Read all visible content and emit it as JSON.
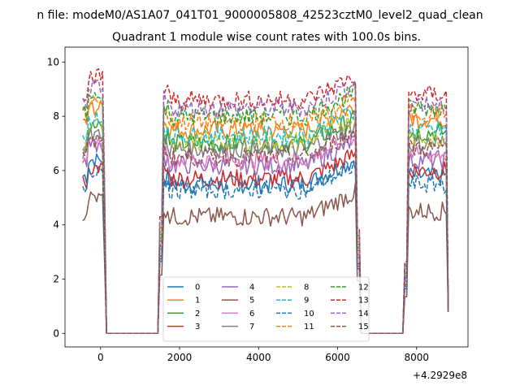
{
  "figure": {
    "suptitle": "n file: modeM0/AS1A07_041T01_9000005808_42523cztM0_level2_quad_clean",
    "title": "Quadrant 1 module wise count rates with 100.0s bins.",
    "offset_label": "+4.2929e8"
  },
  "chart_data": {
    "type": "line",
    "title": "Quadrant 1 module wise count rates with 100.0s bins.",
    "xlabel": "",
    "ylabel": "",
    "x_offset": 429290000,
    "xlim": [
      -900,
      9300
    ],
    "ylim": [
      -0.5,
      10.55
    ],
    "x_ticks": [
      0,
      2000,
      4000,
      6000,
      8000
    ],
    "y_ticks": [
      0,
      2,
      4,
      6,
      8,
      10
    ],
    "x_tick_labels": [
      "0",
      "2000",
      "4000",
      "6000",
      "8000"
    ],
    "y_tick_labels": [
      "0",
      "2",
      "4",
      "6",
      "8",
      "10"
    ],
    "grid": false,
    "legend": {
      "placement": "lower-center",
      "columns": 4
    },
    "segments": [
      [
        -450,
        150
      ],
      [
        150,
        1450
      ],
      [
        1450,
        6600
      ],
      [
        6600,
        7650
      ],
      [
        7650,
        8800
      ]
    ],
    "series": [
      {
        "name": "0",
        "color": "#1f77b4",
        "dash": "solid",
        "level": 5.5,
        "early": 6.4,
        "late": 5.8
      },
      {
        "name": "1",
        "color": "#ff7f0e",
        "dash": "solid",
        "level": 7.5,
        "early": 8.3,
        "late": 7.9
      },
      {
        "name": "2",
        "color": "#2ca02c",
        "dash": "solid",
        "level": 7.0,
        "early": 7.6,
        "late": 7.4
      },
      {
        "name": "3",
        "color": "#d62728",
        "dash": "solid",
        "level": 5.7,
        "early": 6.1,
        "late": 6.0
      },
      {
        "name": "4",
        "color": "#9467bd",
        "dash": "solid",
        "level": 6.2,
        "early": 6.9,
        "late": 6.4
      },
      {
        "name": "5",
        "color": "#8c564b",
        "dash": "solid",
        "level": 4.3,
        "early": 5.0,
        "late": 4.5
      },
      {
        "name": "6",
        "color": "#e377c2",
        "dash": "solid",
        "level": 6.4,
        "early": 7.1,
        "late": 6.6
      },
      {
        "name": "7",
        "color": "#7f7f7f",
        "dash": "solid",
        "level": 6.8,
        "early": 7.3,
        "late": 7.0
      },
      {
        "name": "8",
        "color": "#bcbd22",
        "dash": "dashed",
        "level": 7.1,
        "early": 7.7,
        "late": 7.2
      },
      {
        "name": "9",
        "color": "#17becf",
        "dash": "dashed",
        "level": 7.3,
        "early": 7.9,
        "late": 7.5
      },
      {
        "name": "10",
        "color": "#1f77b4",
        "dash": "dashed",
        "level": 5.3,
        "early": 5.9,
        "late": 5.5
      },
      {
        "name": "11",
        "color": "#ff7f0e",
        "dash": "dashed",
        "level": 7.8,
        "early": 8.6,
        "late": 8.1
      },
      {
        "name": "12",
        "color": "#2ca02c",
        "dash": "dashed",
        "level": 8.0,
        "early": 8.7,
        "late": 8.3
      },
      {
        "name": "13",
        "color": "#d62728",
        "dash": "dashed",
        "level": 8.6,
        "early": 9.5,
        "late": 8.8
      },
      {
        "name": "14",
        "color": "#9467bd",
        "dash": "dashed",
        "level": 8.3,
        "early": 9.1,
        "late": 8.5
      },
      {
        "name": "15",
        "color": "#8c564b",
        "dash": "dashed",
        "level": 6.5,
        "early": 7.1,
        "late": 6.8
      }
    ]
  }
}
